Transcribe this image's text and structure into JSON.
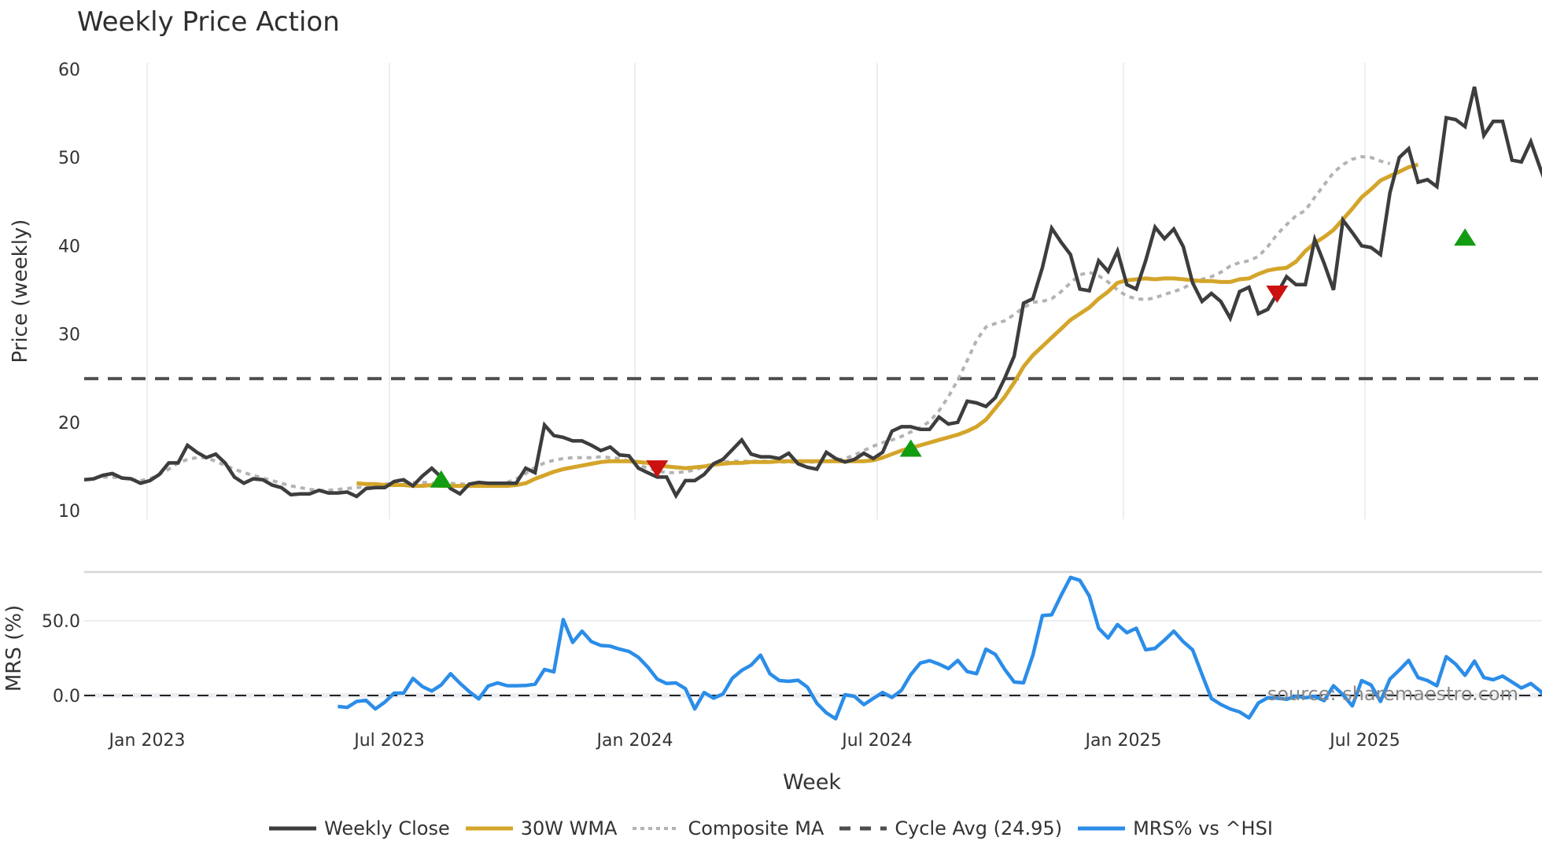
{
  "title": "Weekly Price Action",
  "colors": {
    "weekly_close": "#3d3d3d",
    "wma": "#d4a52a",
    "composite_ma": "#b3b3b3",
    "cycle_avg": "#4d4d4d",
    "mrs": "#2b8de8",
    "buy_marker": "#129c12",
    "sell_marker": "#cc1111",
    "grid": "#eceef2"
  },
  "axes": {
    "price_ylabel": "Price (weekly)",
    "mrs_ylabel": "MRS (%)",
    "xlabel": "Week",
    "price_ticks": [
      "10",
      "20",
      "30",
      "40",
      "50",
      "60"
    ],
    "mrs_ticks": [
      "0.0",
      "50.0"
    ],
    "x_ticks": [
      "Jan 2023",
      "Jul 2023",
      "Jan 2024",
      "Jul 2024",
      "Jan 2025",
      "Jul 2025"
    ]
  },
  "source": "source: sharemaestro.com",
  "legend": [
    {
      "label": "Weekly Close",
      "style": "solid",
      "color": "#3d3d3d"
    },
    {
      "label": "30W WMA",
      "style": "solid",
      "color": "#d4a52a"
    },
    {
      "label": "Composite MA",
      "style": "dotted",
      "color": "#b3b3b3"
    },
    {
      "label": "Cycle Avg (24.95)",
      "style": "dashed",
      "color": "#4d4d4d"
    },
    {
      "label": "MRS% vs ^HSI",
      "style": "solid",
      "color": "#2b8de8"
    }
  ],
  "chart_data": [
    {
      "type": "line",
      "title": "Weekly Price Action",
      "xlabel": "",
      "ylabel": "Price (weekly)",
      "ylim": [
        10,
        60
      ],
      "x_tick_labels": [
        "Jan 2023",
        "Jul 2023",
        "Jan 2024",
        "Jul 2024",
        "Jan 2025",
        "Jul 2025"
      ],
      "grid": true,
      "legend_position": "bottom",
      "start_week_offset": -5,
      "series": [
        {
          "name": "Weekly Close",
          "start_index": 0,
          "values": [
            13.5,
            13.6,
            14.0,
            14.2,
            13.7,
            13.6,
            13.1,
            13.4,
            14.1,
            15.4,
            15.4,
            17.4,
            16.6,
            16.0,
            16.4,
            15.4,
            13.8,
            13.1,
            13.6,
            13.5,
            12.9,
            12.6,
            11.8,
            11.9,
            11.9,
            12.3,
            12.0,
            12.0,
            12.1,
            11.6,
            12.5,
            12.6,
            12.6,
            13.3,
            13.5,
            12.8,
            13.9,
            14.8,
            13.8,
            12.5,
            11.9,
            13.0,
            13.2,
            13.1,
            13.1,
            13.1,
            13.1,
            14.8,
            14.3,
            19.7,
            18.5,
            18.3,
            17.9,
            17.9,
            17.4,
            16.8,
            17.2,
            16.3,
            16.2,
            14.8,
            14.3,
            13.8,
            13.8,
            11.7,
            13.4,
            13.4,
            14.1,
            15.3,
            15.8,
            16.9,
            18.0,
            16.4,
            16.1,
            16.1,
            15.9,
            16.5,
            15.3,
            14.9,
            14.7,
            16.6,
            15.9,
            15.5,
            15.8,
            16.5,
            15.9,
            16.6,
            19.0,
            19.5,
            19.5,
            19.2,
            19.2,
            20.6,
            19.8,
            20.0,
            22.4,
            22.2,
            21.8,
            22.8,
            25.0,
            27.5,
            33.5,
            34.0,
            37.5,
            42.0,
            40.4,
            39.0,
            35.1,
            34.9,
            38.3,
            37.1,
            39.4,
            35.6,
            35.1,
            38.3,
            42.1,
            40.8,
            41.9,
            39.9,
            35.8,
            33.7,
            34.6,
            33.7,
            31.8,
            34.8,
            35.3,
            32.3,
            32.8,
            34.6,
            36.5,
            35.6,
            35.6,
            40.7,
            38.0,
            35.0,
            42.9,
            41.5,
            40.0,
            39.8,
            39.0,
            46.0,
            50.0,
            51.0,
            47.2,
            47.5,
            46.7,
            54.5,
            54.3,
            53.5,
            58.0,
            52.5,
            54.1,
            54.1,
            49.7,
            49.5,
            51.8,
            48.8,
            46.0
          ]
        },
        {
          "name": "30W WMA",
          "start_index": 29,
          "values": [
            13.1,
            13.0,
            13.0,
            12.9,
            12.9,
            12.9,
            12.8,
            12.8,
            12.9,
            12.8,
            12.8,
            12.8,
            12.8,
            12.8,
            12.8,
            12.8,
            12.8,
            12.9,
            13.1,
            13.6,
            14.0,
            14.4,
            14.7,
            14.9,
            15.1,
            15.3,
            15.5,
            15.6,
            15.6,
            15.6,
            15.5,
            15.4,
            15.2,
            15.0,
            14.9,
            14.8,
            14.9,
            15.0,
            15.2,
            15.3,
            15.4,
            15.4,
            15.5,
            15.5,
            15.5,
            15.6,
            15.6,
            15.6,
            15.6,
            15.6,
            15.6,
            15.6,
            15.6,
            15.6,
            15.6,
            15.7,
            16.0,
            16.4,
            16.8,
            17.1,
            17.4,
            17.7,
            18.0,
            18.3,
            18.6,
            19.0,
            19.5,
            20.3,
            21.6,
            22.9,
            24.5,
            26.3,
            27.6,
            28.6,
            29.6,
            30.6,
            31.6,
            32.3,
            33.0,
            34.0,
            34.8,
            35.8,
            36.1,
            36.2,
            36.3,
            36.2,
            36.3,
            36.3,
            36.2,
            36.1,
            36.0,
            36.0,
            35.9,
            35.9,
            36.2,
            36.3,
            36.8,
            37.2,
            37.4,
            37.5,
            38.2,
            39.4,
            40.3,
            41.0,
            41.8,
            43.0,
            44.2,
            45.5,
            46.4,
            47.4,
            47.9,
            48.4,
            48.9,
            49.2
          ]
        },
        {
          "name": "Composite MA",
          "start_index": 2,
          "values": [
            13.8,
            13.8,
            13.7,
            13.5,
            13.4,
            13.6,
            14.1,
            14.7,
            15.4,
            15.8,
            16.0,
            16.0,
            15.6,
            15.1,
            14.7,
            14.3,
            14.0,
            13.7,
            13.4,
            13.1,
            12.8,
            12.6,
            12.4,
            12.3,
            12.3,
            12.4,
            12.5,
            12.6,
            12.7,
            12.9,
            13.0,
            13.1,
            13.2,
            13.2,
            13.2,
            13.1,
            13.1,
            13.1,
            13.0,
            13.0,
            13.0,
            13.0,
            13.0,
            13.2,
            13.6,
            14.2,
            14.9,
            15.4,
            15.7,
            15.9,
            16.0,
            16.0,
            16.0,
            16.1,
            16.0,
            15.9,
            15.6,
            15.2,
            14.8,
            14.5,
            14.3,
            14.3,
            14.4,
            14.6,
            15.0,
            15.3,
            15.5,
            15.6,
            15.6,
            15.6,
            15.6,
            15.6,
            15.5,
            15.5,
            15.5,
            15.5,
            15.5,
            15.6,
            15.7,
            15.9,
            16.3,
            16.8,
            17.3,
            17.7,
            18.0,
            18.4,
            18.9,
            19.4,
            20.1,
            21.3,
            22.9,
            24.8,
            27.0,
            29.3,
            30.8,
            31.2,
            31.5,
            32.2,
            33.0,
            33.6,
            33.7,
            34.0,
            34.8,
            35.8,
            36.7,
            37.0,
            36.6,
            35.9,
            35.0,
            34.3,
            34.0,
            33.9,
            34.1,
            34.5,
            34.8,
            35.2,
            35.8,
            36.2,
            36.5,
            37.0,
            37.7,
            38.1,
            38.3,
            38.8,
            39.9,
            41.3,
            42.4,
            43.4,
            44.0,
            45.5,
            46.9,
            48.3,
            49.2,
            49.8,
            50.1,
            50.0,
            49.6,
            49.3
          ]
        },
        {
          "name": "Cycle Avg (24.95)",
          "constant": 24.95
        }
      ],
      "markers": [
        {
          "type": "buy",
          "shape": "triangle-up",
          "color": "green",
          "index": 38,
          "value": 13.5
        },
        {
          "type": "sell",
          "shape": "triangle-down",
          "color": "red",
          "index": 61,
          "value": 14.8
        },
        {
          "type": "buy",
          "shape": "triangle-up",
          "color": "green",
          "index": 88,
          "value": 17.0
        },
        {
          "type": "sell",
          "shape": "triangle-down",
          "color": "red",
          "index": 127,
          "value": 34.6
        },
        {
          "type": "buy",
          "shape": "triangle-up",
          "color": "green",
          "index": 147,
          "value": 40.9
        }
      ]
    },
    {
      "type": "line",
      "title": "",
      "xlabel": "Week",
      "ylabel": "MRS (%)",
      "ylim": [
        -25,
        80
      ],
      "x_tick_labels": [
        "Jan 2023",
        "Jul 2023",
        "Jan 2024",
        "Jul 2024",
        "Jan 2025",
        "Jul 2025"
      ],
      "grid": true,
      "series": [
        {
          "name": "MRS% vs ^HSI",
          "start_index": 27,
          "values": [
            -7.3,
            -8.0,
            -4.0,
            -3.2,
            -9.0,
            -4.5,
            1.6,
            1.6,
            11.4,
            6.0,
            3.0,
            7.0,
            14.6,
            8.2,
            2.6,
            -2.3,
            6.3,
            8.4,
            6.6,
            6.5,
            6.7,
            7.6,
            17.4,
            15.8,
            50.8,
            35.5,
            43.0,
            36.0,
            33.5,
            33.0,
            31.0,
            29.5,
            25.5,
            19.0,
            11.0,
            8.0,
            8.4,
            4.6,
            -9.0,
            2.0,
            -1.8,
            1.0,
            11.6,
            16.8,
            20.3,
            27.0,
            14.6,
            10.0,
            9.5,
            10.2,
            5.5,
            -5.2,
            -11.6,
            -15.6,
            0.5,
            -0.6,
            -6.1,
            -2.0,
            2.0,
            -1.3,
            3.5,
            14.0,
            21.7,
            23.3,
            21.0,
            18.0,
            23.5,
            16.0,
            14.6,
            31.0,
            27.5,
            17.5,
            9.0,
            8.5,
            27.0,
            53.4,
            54.0,
            67.0,
            79.0,
            77.0,
            66.5,
            45.0,
            38.5,
            47.5,
            42.0,
            45.0,
            30.6,
            31.5,
            37.0,
            43.0,
            36.0,
            30.5,
            14.0,
            -2.0,
            -6.0,
            -9.0,
            -11.0,
            -15.0,
            -5.0,
            -1.5,
            -1.8,
            -2.5,
            -0.5,
            -1.5,
            -0.6,
            -3.5,
            6.5,
            0.5,
            -7.0,
            10.0,
            7.0,
            -4.0,
            11.0,
            17.0,
            23.5,
            12.0,
            10.0,
            6.5,
            26.0,
            21.0,
            13.5,
            23.0,
            12.0,
            10.5,
            13.0,
            9.0,
            5.0,
            8.0,
            3.0,
            -5.0
          ]
        },
        {
          "name": "Zero line",
          "constant": 0.0
        }
      ]
    }
  ]
}
